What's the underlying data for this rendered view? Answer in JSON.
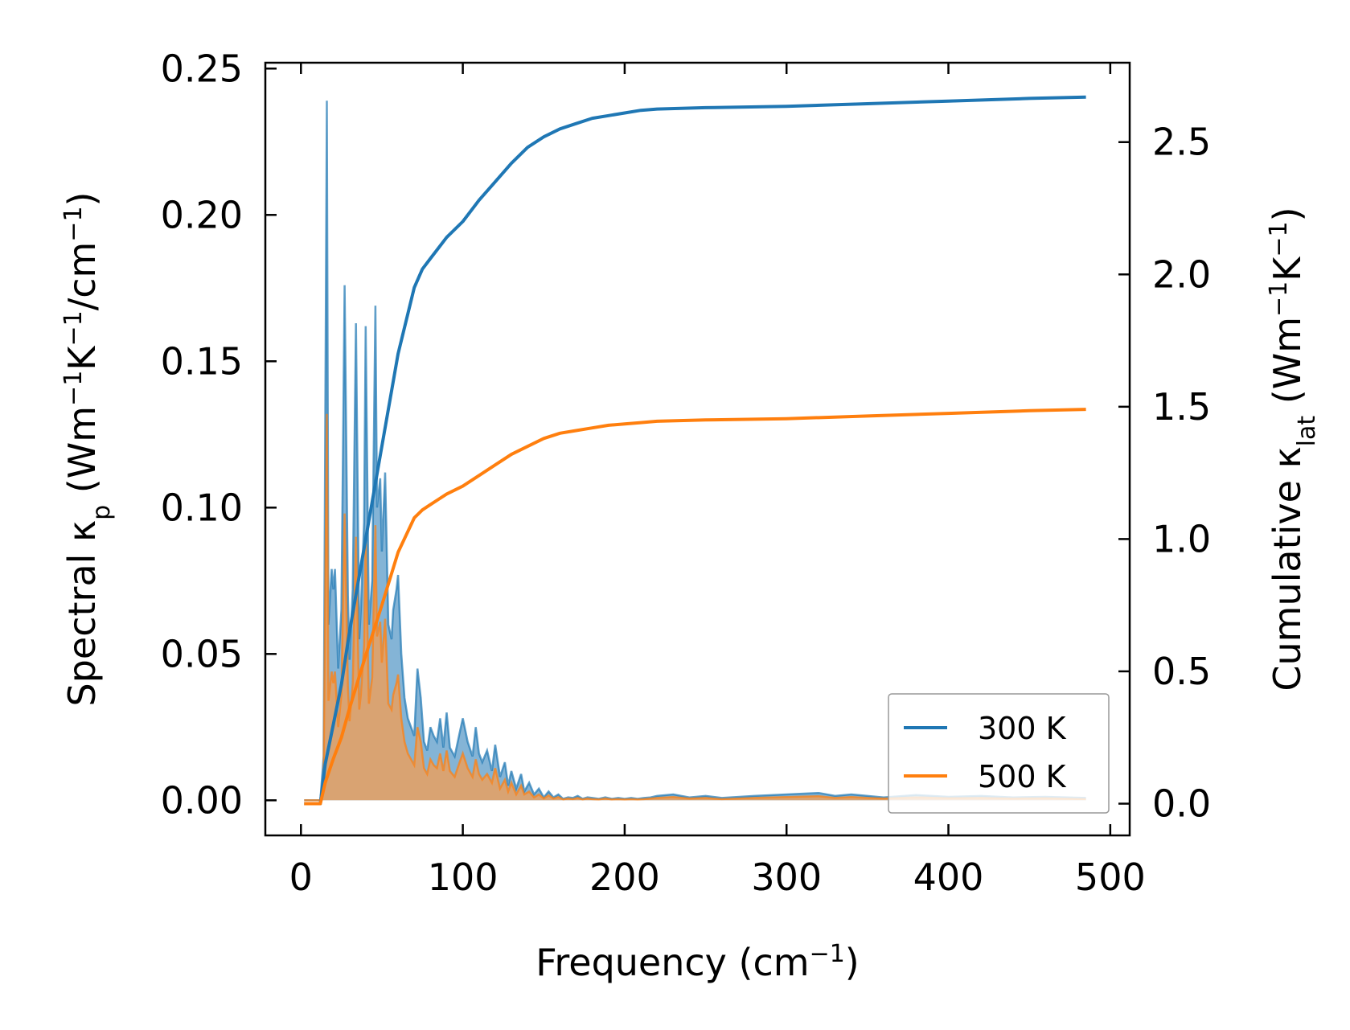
{
  "chart_data": {
    "type": "line",
    "xlabel": {
      "main": "Frequency (cm",
      "sup": "−1",
      "end": ")"
    },
    "ylabel_left": {
      "p1": "Spectral κ",
      "sub": "p",
      "p2": " (Wm",
      "sup1": "−1",
      "p3": "K",
      "sup2": "−1",
      "p4": "/cm",
      "sup3": "−1",
      "p5": ")"
    },
    "ylabel_right": {
      "p1": "Cumulative κ",
      "sub": "lat",
      "p2": " (Wm",
      "sup1": "−1",
      "p3": "K",
      "sup2": "−1",
      "p4": ")"
    },
    "xlim": [
      -22,
      512
    ],
    "ylim_left": [
      -0.012,
      0.252
    ],
    "ylim_right": [
      -0.12,
      2.8
    ],
    "xticks": [
      0,
      100,
      200,
      300,
      400,
      500
    ],
    "xtick_labels": [
      "0",
      "100",
      "200",
      "300",
      "400",
      "500"
    ],
    "yticks_left": [
      0.0,
      0.05,
      0.1,
      0.15,
      0.2,
      0.25
    ],
    "ytick_labels_left": [
      "0.00",
      "0.05",
      "0.10",
      "0.15",
      "0.20",
      "0.25"
    ],
    "yticks_right": [
      0.0,
      0.5,
      1.0,
      1.5,
      2.0,
      2.5
    ],
    "ytick_labels_right": [
      "0.0",
      "0.5",
      "1.0",
      "1.5",
      "2.0",
      "2.5"
    ],
    "legend": {
      "position": "lower right",
      "entries": [
        "300 K",
        "500 K"
      ]
    },
    "colors": {
      "s300": "#1f77b4",
      "s500": "#ff7f0e",
      "fill300": "#1f77b4",
      "fill500": "#e8a060"
    },
    "series": [
      {
        "name": "300 K",
        "spectral": {
          "x": [
            2,
            12,
            14,
            16,
            17,
            19,
            20,
            21,
            23,
            25,
            27,
            29,
            30,
            32,
            34,
            36,
            37,
            39,
            40,
            42,
            44,
            46,
            47,
            49,
            50,
            52,
            54,
            56,
            57,
            59,
            60,
            62,
            64,
            66,
            68,
            70,
            72,
            74,
            76,
            78,
            80,
            82,
            84,
            86,
            88,
            90,
            92,
            95,
            98,
            100,
            103,
            106,
            108,
            110,
            112,
            115,
            118,
            120,
            123,
            126,
            128,
            130,
            133,
            136,
            138,
            141,
            144,
            147,
            150,
            153,
            156,
            159,
            162,
            165,
            168,
            171,
            174,
            177,
            180,
            184,
            188,
            192,
            196,
            200,
            204,
            208,
            212,
            216,
            220,
            230,
            240,
            250,
            260,
            280,
            300,
            320,
            330,
            340,
            350,
            360,
            380,
            400,
            420,
            440,
            460,
            485
          ],
          "y": [
            0,
            0,
            0.015,
            0.239,
            0.06,
            0.079,
            0.072,
            0.079,
            0.045,
            0.065,
            0.176,
            0.07,
            0.048,
            0.072,
            0.163,
            0.055,
            0.065,
            0.095,
            0.162,
            0.06,
            0.075,
            0.169,
            0.1,
            0.11,
            0.085,
            0.112,
            0.06,
            0.055,
            0.065,
            0.072,
            0.077,
            0.05,
            0.035,
            0.028,
            0.025,
            0.022,
            0.045,
            0.035,
            0.02,
            0.017,
            0.025,
            0.022,
            0.02,
            0.028,
            0.018,
            0.03,
            0.018,
            0.015,
            0.023,
            0.028,
            0.02,
            0.015,
            0.025,
            0.016,
            0.013,
            0.017,
            0.01,
            0.019,
            0.008,
            0.013,
            0.005,
            0.01,
            0.004,
            0.009,
            0.003,
            0.006,
            0.002,
            0.004,
            0.001,
            0.003,
            0.001,
            0.002,
            0.0005,
            0.001,
            0.0008,
            0.0015,
            0.0005,
            0.001,
            0.0008,
            0.0005,
            0.001,
            0.0005,
            0.0008,
            0.0005,
            0.0008,
            0.0005,
            0.0008,
            0.001,
            0.0015,
            0.002,
            0.001,
            0.0015,
            0.0008,
            0.0015,
            0.002,
            0.0025,
            0.0015,
            0.002,
            0.0015,
            0.001,
            0.0018,
            0.0012,
            0.0015,
            0.001,
            0.0012,
            0.0008
          ]
        },
        "cumulative": {
          "x": [
            2,
            12,
            15,
            20,
            25,
            30,
            40,
            50,
            60,
            70,
            75,
            80,
            85,
            90,
            100,
            110,
            120,
            130,
            140,
            150,
            160,
            170,
            180,
            190,
            200,
            210,
            220,
            250,
            300,
            350,
            400,
            450,
            485
          ],
          "y": [
            0,
            0,
            0.15,
            0.3,
            0.45,
            0.65,
            1.0,
            1.35,
            1.7,
            1.95,
            2.02,
            2.06,
            2.1,
            2.14,
            2.2,
            2.28,
            2.35,
            2.42,
            2.48,
            2.52,
            2.55,
            2.57,
            2.59,
            2.6,
            2.61,
            2.62,
            2.625,
            2.63,
            2.635,
            2.645,
            2.655,
            2.665,
            2.67
          ]
        }
      },
      {
        "name": "500 K",
        "spectral": {
          "x": [
            2,
            12,
            14,
            16,
            17,
            19,
            20,
            21,
            23,
            25,
            27,
            29,
            30,
            32,
            34,
            36,
            37,
            39,
            40,
            42,
            44,
            46,
            47,
            49,
            50,
            52,
            54,
            56,
            57,
            59,
            60,
            62,
            64,
            66,
            68,
            70,
            72,
            74,
            76,
            78,
            80,
            82,
            84,
            86,
            88,
            90,
            92,
            95,
            98,
            100,
            103,
            106,
            108,
            110,
            112,
            115,
            118,
            120,
            123,
            126,
            128,
            130,
            133,
            136,
            138,
            141,
            144,
            147,
            150,
            153,
            156,
            159,
            162,
            165,
            168,
            171,
            174,
            177,
            180,
            184,
            188,
            192,
            196,
            200,
            204,
            208,
            212,
            216,
            220,
            230,
            240,
            250,
            260,
            280,
            300,
            320,
            330,
            340,
            350,
            360,
            380,
            400,
            420,
            440,
            460,
            485
          ],
          "y": [
            0,
            0,
            0.009,
            0.132,
            0.034,
            0.044,
            0.04,
            0.044,
            0.025,
            0.036,
            0.098,
            0.039,
            0.027,
            0.04,
            0.09,
            0.031,
            0.036,
            0.053,
            0.09,
            0.033,
            0.042,
            0.094,
            0.056,
            0.061,
            0.047,
            0.062,
            0.033,
            0.031,
            0.036,
            0.04,
            0.043,
            0.028,
            0.02,
            0.016,
            0.014,
            0.012,
            0.025,
            0.02,
            0.011,
            0.009,
            0.014,
            0.012,
            0.011,
            0.016,
            0.01,
            0.017,
            0.01,
            0.008,
            0.013,
            0.016,
            0.011,
            0.008,
            0.014,
            0.009,
            0.007,
            0.009,
            0.006,
            0.011,
            0.004,
            0.007,
            0.003,
            0.006,
            0.002,
            0.005,
            0.002,
            0.003,
            0.001,
            0.002,
            0.0006,
            0.0017,
            0.0006,
            0.0011,
            0.0003,
            0.0006,
            0.0004,
            0.0008,
            0.0003,
            0.0006,
            0.0004,
            0.0003,
            0.0006,
            0.0003,
            0.0004,
            0.0003,
            0.0004,
            0.0003,
            0.0004,
            0.0006,
            0.0008,
            0.0011,
            0.0006,
            0.0008,
            0.0004,
            0.0008,
            0.0011,
            0.0014,
            0.0008,
            0.0011,
            0.0008,
            0.0006,
            0.001,
            0.0007,
            0.0008,
            0.0006,
            0.0007,
            0.0004
          ]
        },
        "cumulative": {
          "x": [
            2,
            12,
            15,
            20,
            25,
            30,
            40,
            50,
            60,
            70,
            75,
            80,
            85,
            90,
            100,
            110,
            120,
            130,
            140,
            150,
            160,
            170,
            180,
            190,
            200,
            210,
            220,
            250,
            300,
            350,
            400,
            450,
            485
          ],
          "y": [
            0,
            0,
            0.08,
            0.17,
            0.25,
            0.36,
            0.56,
            0.75,
            0.95,
            1.08,
            1.11,
            1.13,
            1.15,
            1.17,
            1.2,
            1.24,
            1.28,
            1.32,
            1.35,
            1.38,
            1.4,
            1.41,
            1.42,
            1.43,
            1.435,
            1.44,
            1.445,
            1.45,
            1.455,
            1.465,
            1.475,
            1.485,
            1.49
          ]
        }
      }
    ]
  }
}
